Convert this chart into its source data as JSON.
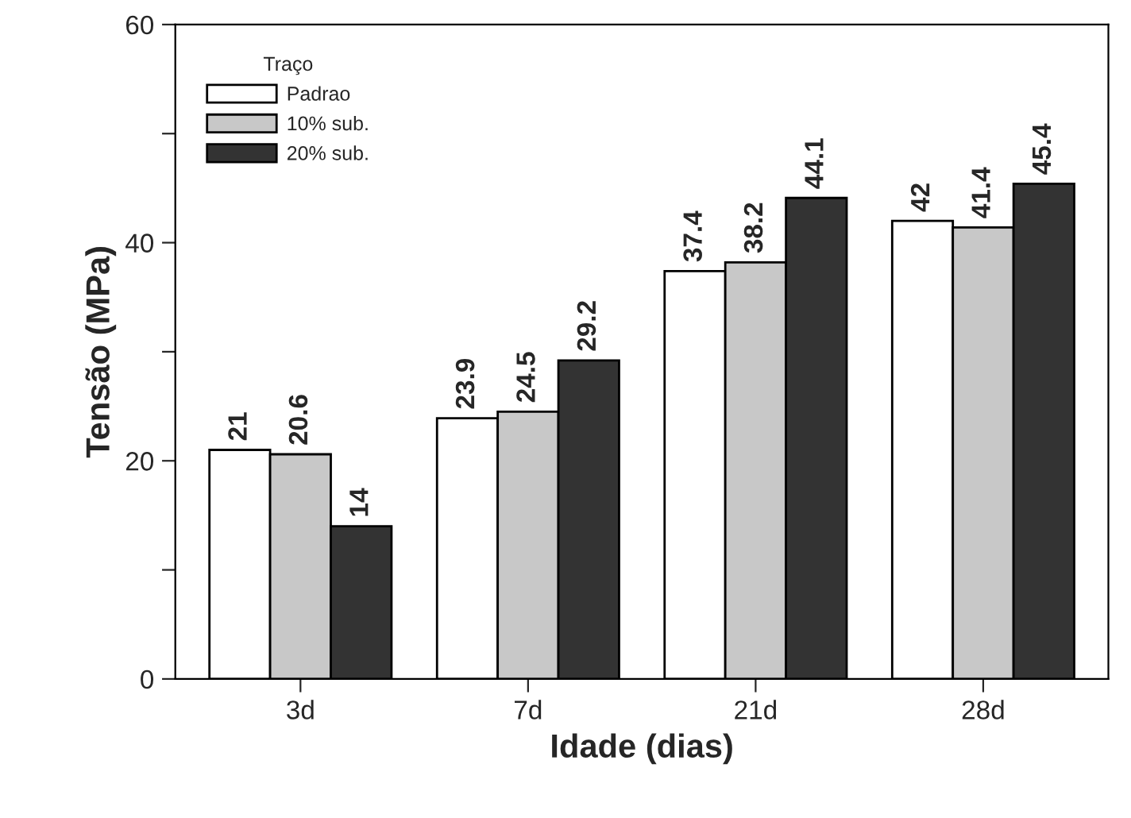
{
  "chart_data": {
    "type": "bar",
    "xlabel": "Idade (dias)",
    "ylabel": "Tensão (MPa)",
    "legend_title": "Traço",
    "categories": [
      "3d",
      "7d",
      "21d",
      "28d"
    ],
    "series": [
      {
        "name": "Padrao",
        "color": "#ffffff",
        "values": [
          21,
          23.9,
          37.4,
          42
        ]
      },
      {
        "name": "10% sub.",
        "color": "#c8c8c8",
        "values": [
          20.6,
          24.5,
          38.2,
          41.4
        ]
      },
      {
        "name": "20% sub.",
        "color": "#333333",
        "values": [
          14,
          29.2,
          44.1,
          45.4
        ]
      }
    ],
    "ylim": [
      0,
      60
    ],
    "yticks": [
      0,
      {
        "value": 10,
        "label": null
      },
      20,
      {
        "value": 30,
        "label": null
      },
      40,
      {
        "value": 50,
        "label": null
      },
      60
    ],
    "data_labels": true,
    "legend": "top left",
    "grid": false
  }
}
